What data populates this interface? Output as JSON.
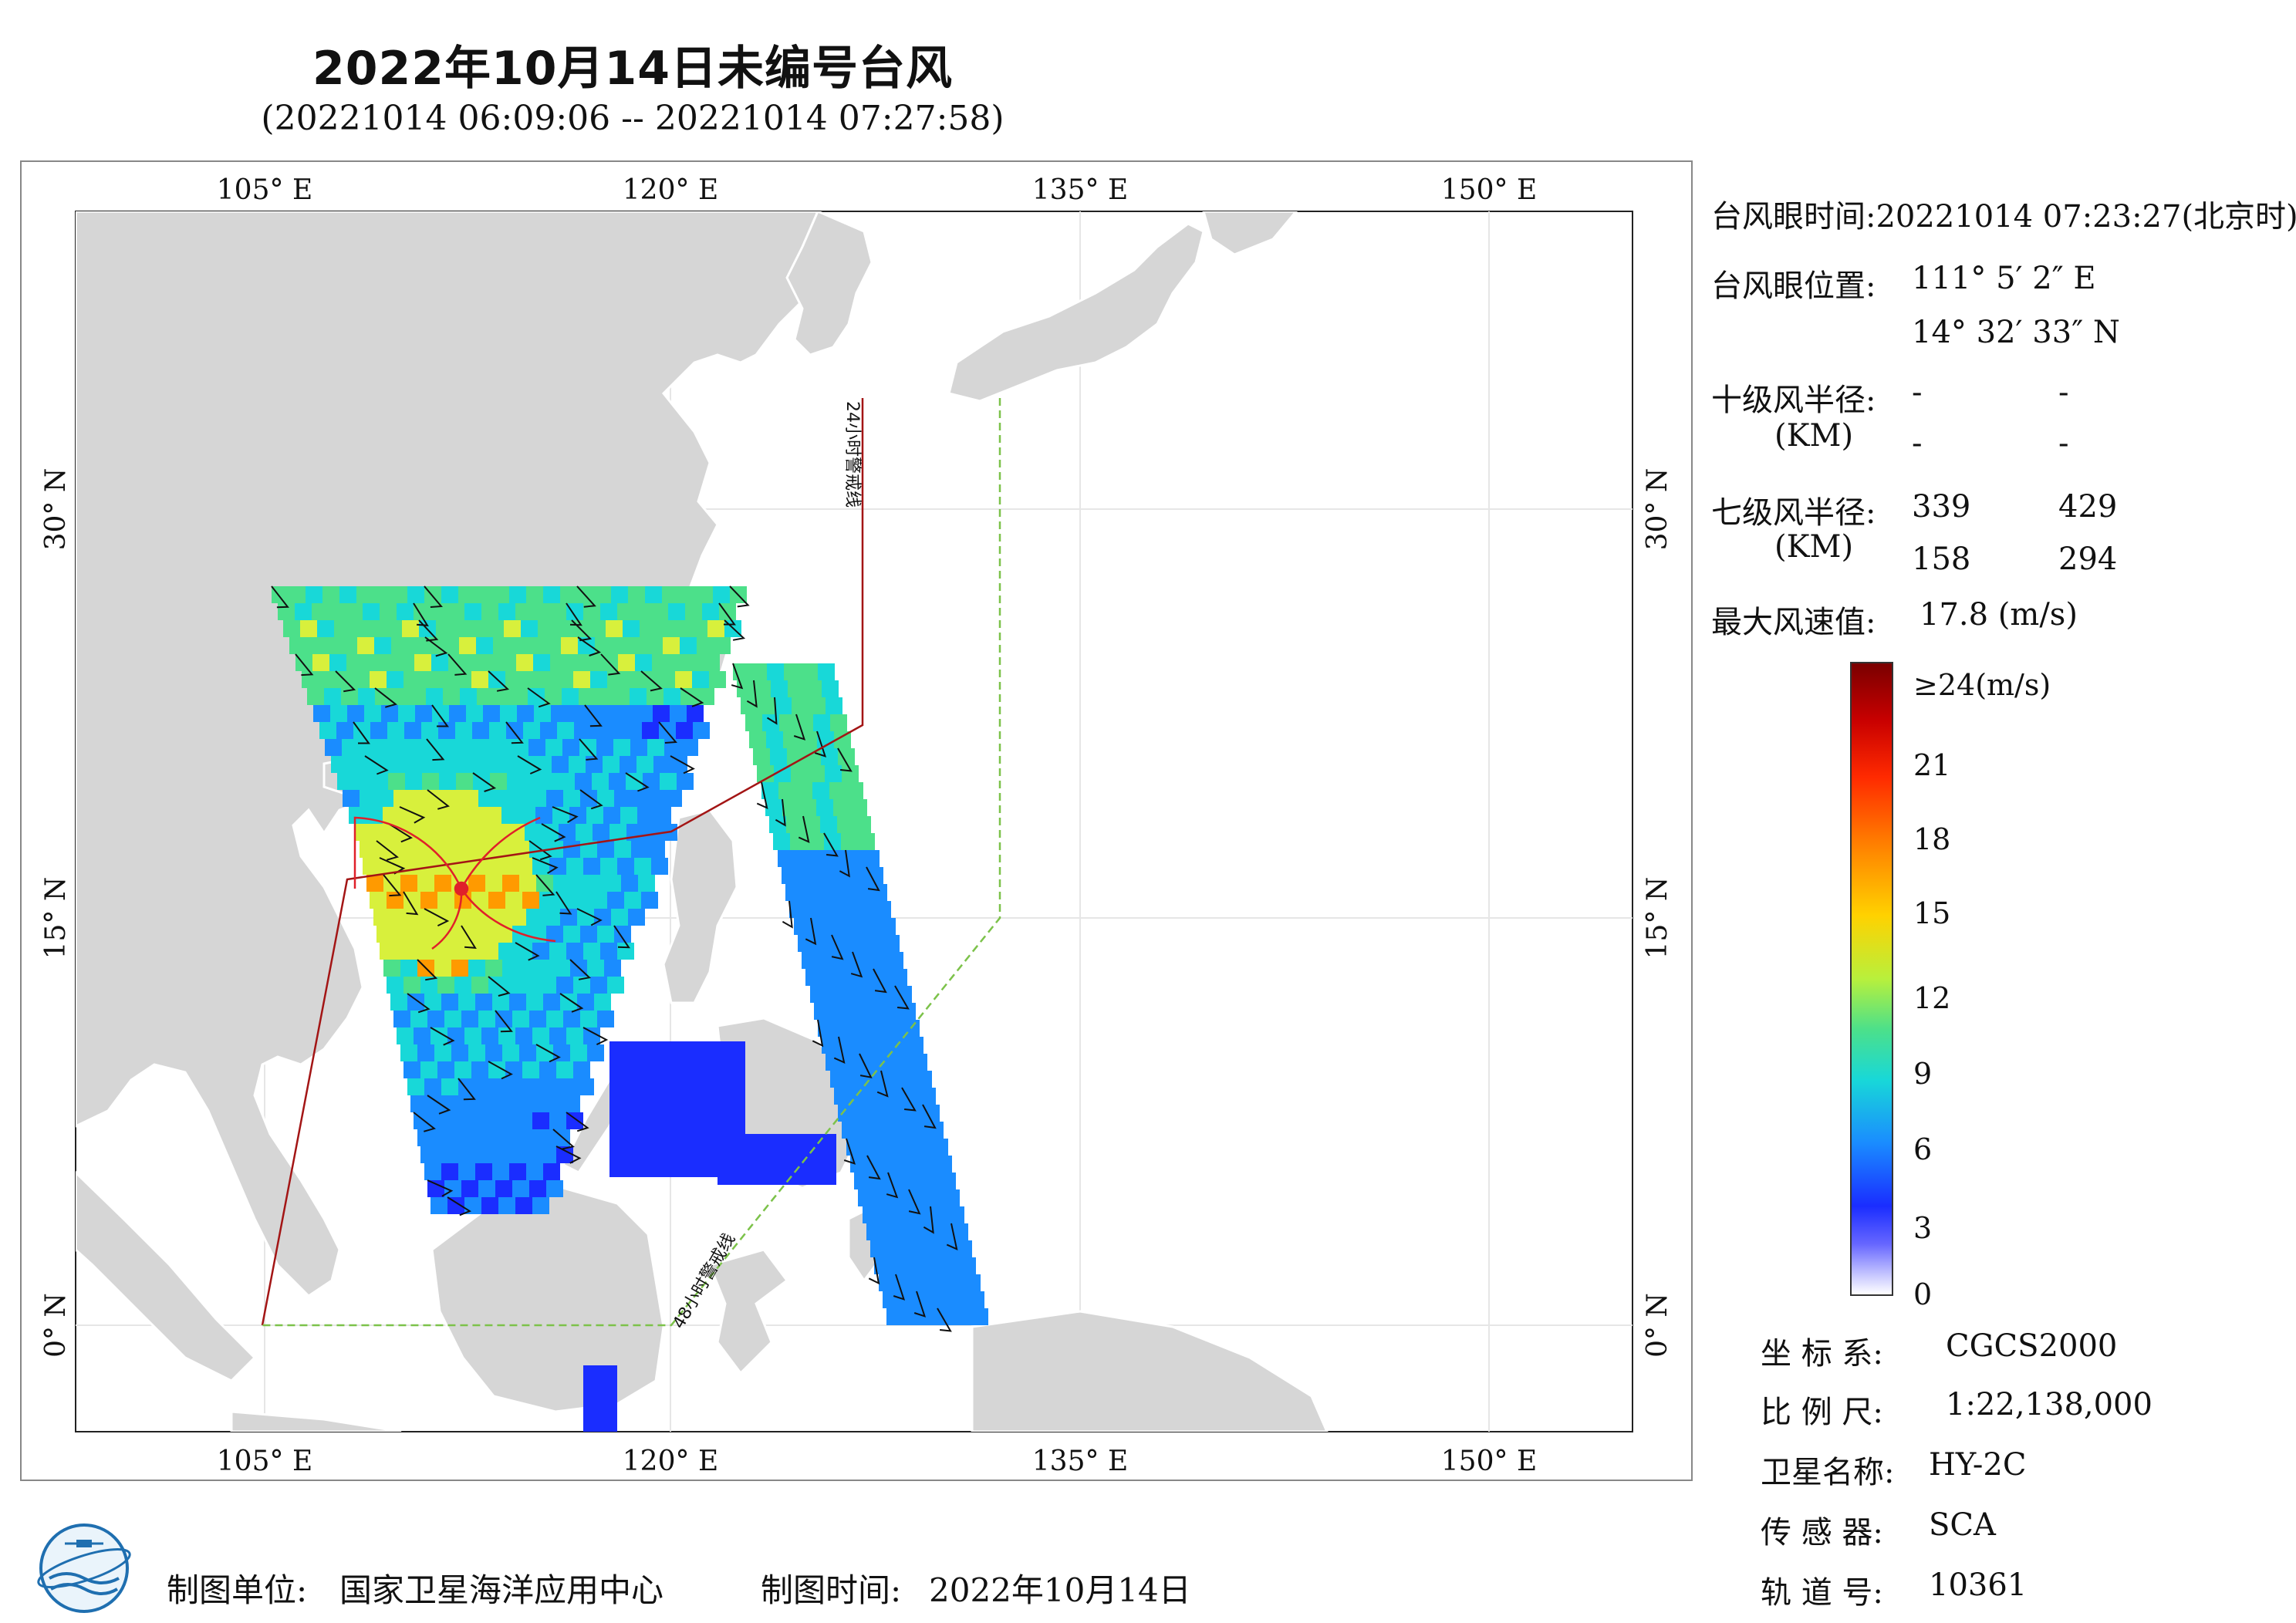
{
  "title": "2022年10月14日未编号台风",
  "subtitle": "(20221014 06:09:06 -- 20221014 07:27:58)",
  "map": {
    "lon_labels_top": [
      "105° E",
      "120° E",
      "135° E",
      "150° E"
    ],
    "lon_labels_bottom": [
      "105° E",
      "120° E",
      "135° E",
      "150° E"
    ],
    "lat_labels_left": [
      "30° N",
      "15° N",
      "0° N"
    ],
    "lat_labels_right": [
      "30° N",
      "15° N",
      "0° N"
    ],
    "warning_line_24": "24小时警戒线",
    "warning_line_48": "48小时警戒线",
    "colors": {
      "land": "#d6d6d6",
      "sea": "#ffffff",
      "warn24": "#a31515",
      "warn48": "#7cc24a",
      "radius": "#e0202a"
    }
  },
  "info": {
    "eye_time_label": "台风眼时间:",
    "eye_time_value": "20221014 07:23:27(北京时)",
    "eye_pos_label": "台风眼位置:",
    "eye_lon": "111° 5′ 2″ E",
    "eye_lat": "14° 32′ 33″ N",
    "r10_label": "十级风半径:",
    "r10_unit": "(KM)",
    "r10_values": [
      "-",
      "-",
      "-",
      "-"
    ],
    "r7_label": "七级风半径:",
    "r7_unit": "(KM)",
    "r7_values": [
      "339",
      "429",
      "158",
      "294"
    ],
    "max_wind_label": "最大风速值:",
    "max_wind_value": "17.8  (m/s)"
  },
  "colorbar": {
    "labels": [
      "≥24(m/s)",
      "21",
      "18",
      "15",
      "12",
      "9",
      "6",
      "3",
      "0"
    ]
  },
  "meta": {
    "crs_label": "坐 标 系:",
    "crs_value": "CGCS2000",
    "scale_label": "比 例 尺:",
    "scale_value": "1:22,138,000",
    "satellite_label": "卫星名称:",
    "satellite_value": "HY-2C",
    "sensor_label": "传 感 器:",
    "sensor_value": "SCA",
    "orbit_label": "轨 道 号:",
    "orbit_value": "10361"
  },
  "footer": {
    "unit_label": "制图单位:",
    "unit_value": "国家卫星海洋应用中心",
    "time_label": "制图时间:",
    "time_value": "2022年10月14日"
  }
}
